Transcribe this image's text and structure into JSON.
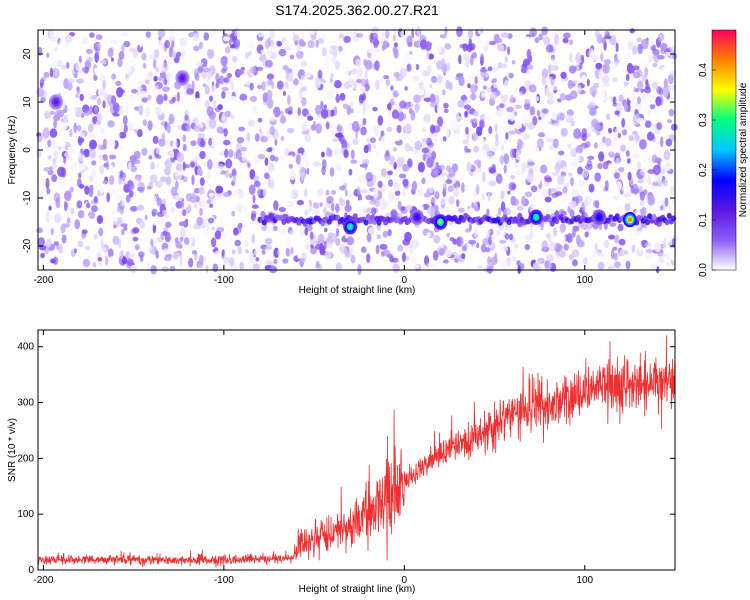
{
  "title": "S174.2025.362.00.27.R21",
  "colors": {
    "line": "#f03030",
    "frame": "#000000"
  },
  "chart_data": [
    {
      "type": "heatmap",
      "xlabel": "Height of straight line (km)",
      "ylabel": "Frequency (Hz)",
      "xlim": [
        -203,
        150
      ],
      "ylim": [
        -25,
        25
      ],
      "xticks": [
        -200,
        -100,
        0,
        100
      ],
      "yticks": [
        -20,
        -10,
        0,
        10,
        20
      ],
      "colorbar": {
        "label": "Normalized spectral amplitude",
        "range": [
          0,
          0.48
        ],
        "ticks": [
          0.0,
          0.1,
          0.2,
          0.3,
          0.4
        ],
        "colormap": [
          "#ffffff",
          "#8b5cf6",
          "#5a18e0",
          "#0000ff",
          "#00c8ff",
          "#00ff80",
          "#ffff00",
          "#ff8000",
          "#ff0060"
        ]
      },
      "features": [
        {
          "kind": "horizontal-band",
          "frequency_hz": -14.5,
          "x_range": [
            -80,
            150
          ],
          "amplitude": 0.2
        },
        {
          "kind": "hotspot",
          "x": -30,
          "frequency_hz": -16,
          "amplitude": 0.3
        },
        {
          "kind": "hotspot",
          "x": 20,
          "frequency_hz": -15,
          "amplitude": 0.33
        },
        {
          "kind": "hotspot",
          "x": 73,
          "frequency_hz": -14,
          "amplitude": 0.3
        },
        {
          "kind": "hotspot",
          "x": 125,
          "frequency_hz": -14.5,
          "amplitude": 0.42
        },
        {
          "kind": "hotspot",
          "x": 7,
          "frequency_hz": -14,
          "amplitude": 0.15
        },
        {
          "kind": "hotspot",
          "x": 108,
          "frequency_hz": -14,
          "amplitude": 0.18
        },
        {
          "kind": "hotspot",
          "x": -193,
          "frequency_hz": 10,
          "amplitude": 0.12
        },
        {
          "kind": "hotspot",
          "x": -123,
          "frequency_hz": 15,
          "amplitude": 0.12
        }
      ]
    },
    {
      "type": "line",
      "xlabel": "Height of straight line (km)",
      "ylabel": "SNR (10 * v/v)",
      "xlim": [
        -203,
        150
      ],
      "ylim": [
        0,
        430
      ],
      "xticks": [
        -200,
        -100,
        0,
        100
      ],
      "yticks": [
        0,
        100,
        200,
        300,
        400
      ],
      "series": [
        {
          "x": [
            -203,
            -180,
            -160,
            -140,
            -120,
            -100,
            -80,
            -62,
            -58,
            -50,
            -40,
            -30,
            -20,
            -10,
            0,
            10,
            20,
            30,
            40,
            50,
            60,
            70,
            80,
            90,
            100,
            110,
            120,
            130,
            140,
            150
          ],
          "y": [
            18,
            19,
            19,
            18,
            18,
            18,
            19,
            22,
            48,
            55,
            62,
            78,
            100,
            125,
            155,
            185,
            205,
            225,
            240,
            258,
            275,
            285,
            295,
            305,
            318,
            326,
            330,
            333,
            336,
            335
          ]
        }
      ]
    }
  ]
}
